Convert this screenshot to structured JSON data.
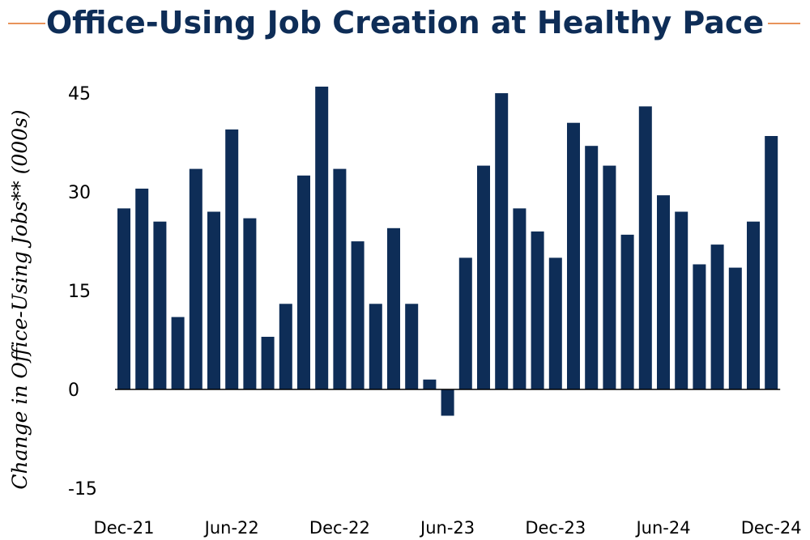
{
  "header": {
    "title": "Office-Using Job Creation at Healthy Pace"
  },
  "colors": {
    "bar": "#0e2d57",
    "accent_line": "#e8935a",
    "axis": "#000000"
  },
  "chart_data": {
    "type": "bar",
    "title": "Office-Using Job Creation at Healthy Pace",
    "ylabel": "Change in Office-Using Jobs** (000s)",
    "xlabel": "",
    "ylim": [
      -15,
      45
    ],
    "yticks": [
      45,
      30,
      15,
      0,
      -15
    ],
    "x_tick_labels": [
      "Dec-21",
      "Jun-22",
      "Dec-22",
      "Jun-23",
      "Dec-23",
      "Jun-24",
      "Dec-24"
    ],
    "x_tick_indices": [
      0,
      6,
      12,
      18,
      24,
      30,
      36
    ],
    "categories": [
      "Dec-21",
      "Jan-22",
      "Feb-22",
      "Mar-22",
      "Apr-22",
      "May-22",
      "Jun-22",
      "Jul-22",
      "Aug-22",
      "Sep-22",
      "Oct-22",
      "Nov-22",
      "Dec-22",
      "Jan-23",
      "Feb-23",
      "Mar-23",
      "Apr-23",
      "May-23",
      "Jun-23",
      "Jul-23",
      "Aug-23",
      "Sep-23",
      "Oct-23",
      "Nov-23",
      "Dec-23",
      "Jan-24",
      "Feb-24",
      "Mar-24",
      "Apr-24",
      "May-24",
      "Jun-24",
      "Jul-24",
      "Aug-24",
      "Sep-24",
      "Oct-24",
      "Nov-24",
      "Dec-24"
    ],
    "values": [
      27.5,
      30.5,
      25.5,
      11.0,
      33.5,
      27.0,
      39.5,
      26.0,
      8.0,
      13.0,
      32.5,
      46.0,
      33.5,
      22.5,
      13.0,
      24.5,
      13.0,
      1.5,
      -4.0,
      20.0,
      34.0,
      45.0,
      27.5,
      24.0,
      20.0,
      40.5,
      37.0,
      34.0,
      23.5,
      43.0,
      29.5,
      27.0,
      19.0,
      22.0,
      18.5,
      25.5,
      38.5
    ]
  }
}
